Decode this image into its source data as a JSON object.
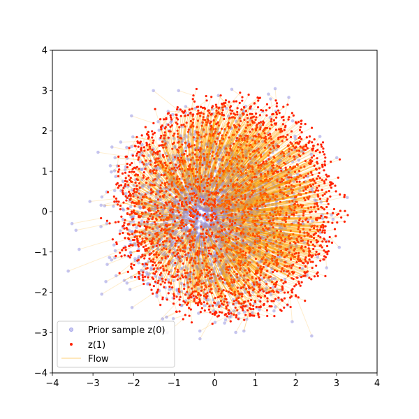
{
  "chart_data": {
    "type": "scatter",
    "title": "",
    "xlabel": "",
    "ylabel": "",
    "xlim": [
      -4,
      4
    ],
    "ylim": [
      -4,
      4
    ],
    "xticks": [
      -4,
      -3,
      -2,
      -1,
      0,
      1,
      2,
      3,
      4
    ],
    "yticks": [
      -4,
      -3,
      -2,
      -1,
      0,
      1,
      2,
      3,
      4
    ],
    "grid": false,
    "legend_position": "lower-left",
    "series": [
      {
        "name": "Prior sample z(0)",
        "kind": "points",
        "color": "#8080e0",
        "alpha": 0.45,
        "distribution": "standard normal, mean (0,0), sd 1",
        "count": 3000
      },
      {
        "name": "z(1)",
        "kind": "points",
        "color": "#ff2000",
        "distribution": "radial flow of prior samples onto a disk of radius about 3 centred at (0.3, 0.1)",
        "count": 3000
      },
      {
        "name": "Flow",
        "kind": "lines",
        "color": "#ffa500",
        "alpha": 0.2,
        "connects": "each z(0) point to its z(1) point"
      }
    ],
    "legend_labels": {
      "prior": "Prior sample z(0)",
      "z1": "z(1)",
      "flow": "Flow"
    }
  }
}
